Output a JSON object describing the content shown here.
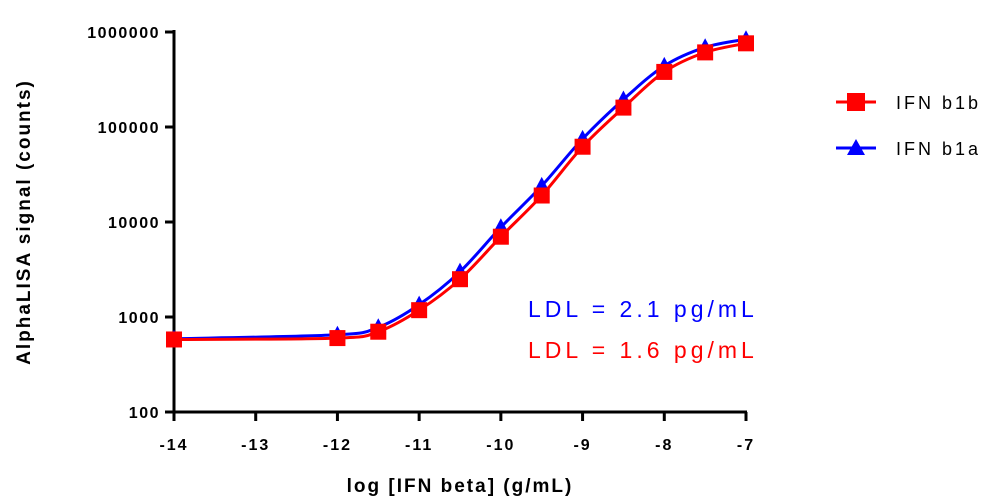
{
  "chart_data": {
    "type": "line",
    "xlabel": "log [IFN beta] (g/mL)",
    "ylabel": "AlphaLISA signal (counts)",
    "xlim": [
      -14,
      -7
    ],
    "ylim": [
      100,
      1000000
    ],
    "yscale": "log",
    "x_ticks": [
      -14,
      -13,
      -12,
      -11,
      -10,
      -9,
      -8,
      -7
    ],
    "x_tick_labels": [
      "-14",
      "-13",
      "-12",
      "-11",
      "-10",
      "-9",
      "-8",
      "-7"
    ],
    "y_ticks": [
      100,
      1000,
      10000,
      100000,
      1000000
    ],
    "y_tick_labels": [
      "100",
      "1000",
      "10000",
      "100000",
      "1000000"
    ],
    "grid": false,
    "legend_position": "right",
    "x": [
      -14,
      -12,
      -11.5,
      -11,
      -10.5,
      -10,
      -9.5,
      -9,
      -8.5,
      -8,
      -7.5,
      -7
    ],
    "series": [
      {
        "name": "IFN b1b",
        "color": "#ff0000",
        "marker": "square",
        "values": [
          580,
          600,
          700,
          1180,
          2500,
          7000,
          19000,
          62000,
          160000,
          380000,
          610000,
          760000
        ]
      },
      {
        "name": "IFN b1a",
        "color": "#0000ff",
        "marker": "triangle",
        "values": [
          590,
          650,
          780,
          1350,
          3000,
          8800,
          24000,
          75000,
          195000,
          440000,
          690000,
          840000
        ]
      }
    ],
    "annotations": [
      {
        "text": "LDL = 2.1 pg/mL",
        "color": "#0000ff"
      },
      {
        "text": "LDL = 1.6 pg/mL",
        "color": "#ff0000"
      }
    ]
  }
}
